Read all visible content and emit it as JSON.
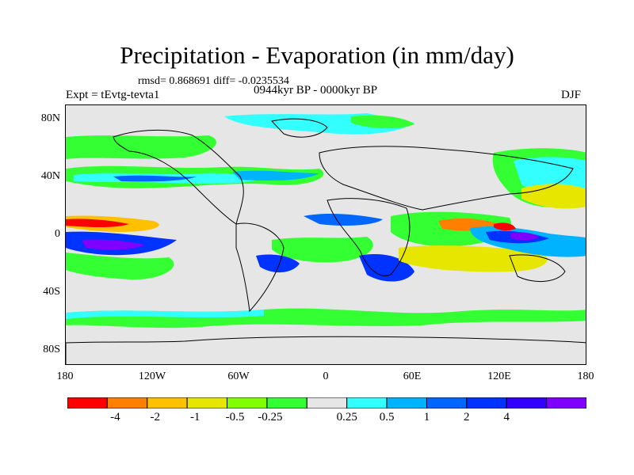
{
  "title": "Precipitation - Evaporation (in mm/day)",
  "stats": "rmsd= 0.868691 diff= -0.0235534",
  "period": "0944kyr BP - 0000kyr BP",
  "experiment": "Expt = tEvtg-tevta1",
  "season": "DJF",
  "map": {
    "y_axis_labels": [
      "80N",
      "40N",
      "0",
      "40S",
      "80S"
    ],
    "x_axis_labels": [
      "180",
      "120W",
      "60W",
      "0",
      "60E",
      "120E",
      "180"
    ]
  },
  "colorbar": {
    "colors": [
      "#ff0000",
      "#ff8000",
      "#ffc000",
      "#e6e600",
      "#80ff00",
      "#33ff33",
      "#e6e6e6",
      "#33ffff",
      "#00b3ff",
      "#0066ff",
      "#0033ff",
      "#3300ff",
      "#8000ff"
    ],
    "labels": [
      "-4",
      "-2",
      "-1",
      "-0.5",
      "-0.25",
      "0.25",
      "0.5",
      "1",
      "2",
      "4"
    ]
  }
}
